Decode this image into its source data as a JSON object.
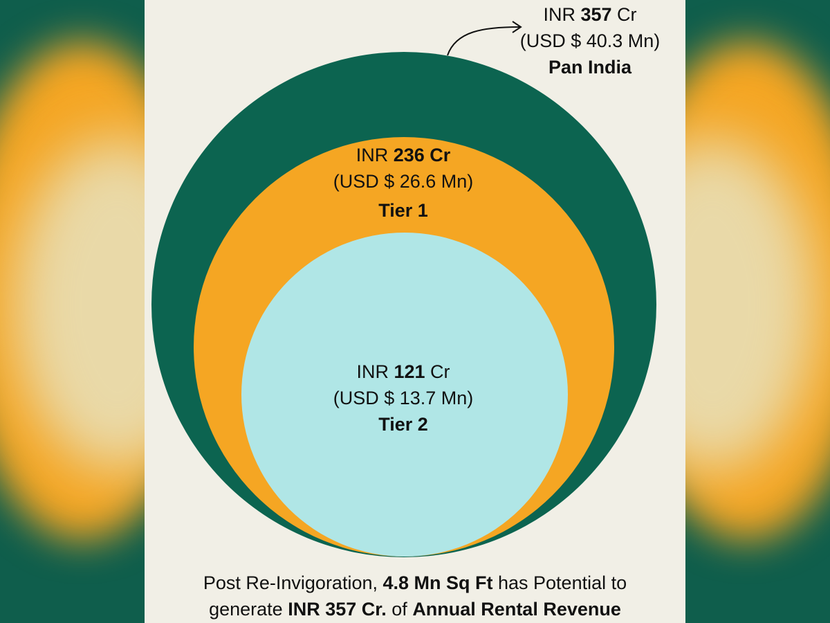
{
  "colors": {
    "background": "#f1efe6",
    "pan_india": "#0c6450",
    "tier1": "#f5a623",
    "tier2": "#b0e6e6",
    "text": "#111111"
  },
  "circles": [
    {
      "name": "Pan India",
      "inr_prefix": "INR",
      "inr_value": "357",
      "inr_suffix": "Cr",
      "usd": "(USD $ 40.3 Mn)",
      "label": "Pan India"
    },
    {
      "name": "Tier 1",
      "inr_prefix": "INR",
      "inr_value": "236 Cr",
      "inr_suffix": "",
      "usd": "(USD $ 26.6 Mn)",
      "label": "Tier 1"
    },
    {
      "name": "Tier 2",
      "inr_prefix": "INR",
      "inr_value": "121",
      "inr_suffix": "Cr",
      "usd": "(USD $ 13.7 Mn)",
      "label": "Tier 2"
    }
  ],
  "caption": {
    "line1_a": "Post Re-Invigoration, ",
    "line1_b": "4.8 Mn Sq Ft",
    "line1_c": " has Potential to",
    "line2_a": "generate ",
    "line2_b": "INR 357 Cr.",
    "line2_c": " of ",
    "line2_d": "Annual Rental Revenue"
  }
}
